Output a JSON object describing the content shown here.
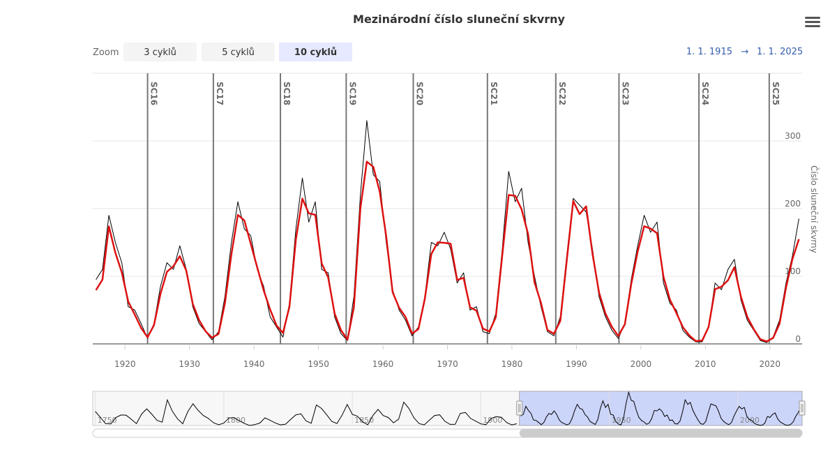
{
  "chart_data": {
    "type": "line",
    "title": "Mezinárodní číslo sluneční skvrny",
    "zoom_label": "Zoom",
    "zoom_buttons": [
      "3 cyklů",
      "5 cyklů",
      "10 cyklů"
    ],
    "zoom_selected": 2,
    "range_from": "1. 1. 1915",
    "range_arrow": "→",
    "range_to": "1. 1. 2025",
    "y_axis_label": "Číslo sluneční skvrny",
    "xlim": [
      1915,
      2025
    ],
    "xticks": [
      1920,
      1930,
      1940,
      1950,
      1960,
      1970,
      1980,
      1990,
      2000,
      2010,
      2020
    ],
    "ylim": [
      0,
      400
    ],
    "yticks": [
      0,
      100,
      200,
      300
    ],
    "grid": true,
    "x": [
      1915.5,
      1916.5,
      1917.5,
      1918.5,
      1919.5,
      1920.5,
      1921.5,
      1922.5,
      1923.5,
      1924.5,
      1925.5,
      1926.5,
      1927.5,
      1928.5,
      1929.5,
      1930.5,
      1931.5,
      1932.5,
      1933.5,
      1934.5,
      1935.5,
      1936.5,
      1937.5,
      1938.5,
      1939.5,
      1940.5,
      1941.5,
      1942.5,
      1943.5,
      1944.5,
      1945.5,
      1946.5,
      1947.5,
      1948.5,
      1949.5,
      1950.5,
      1951.5,
      1952.5,
      1953.5,
      1954.5,
      1955.5,
      1956.5,
      1957.5,
      1958.5,
      1959.5,
      1960.5,
      1961.5,
      1962.5,
      1963.5,
      1964.5,
      1965.5,
      1966.5,
      1967.5,
      1968.5,
      1969.5,
      1970.5,
      1971.5,
      1972.5,
      1973.5,
      1974.5,
      1975.5,
      1976.5,
      1977.5,
      1978.5,
      1979.5,
      1980.5,
      1981.5,
      1982.5,
      1983.5,
      1984.5,
      1985.5,
      1986.5,
      1987.5,
      1988.5,
      1989.5,
      1990.5,
      1991.5,
      1992.5,
      1993.5,
      1994.5,
      1995.5,
      1996.5,
      1997.5,
      1998.5,
      1999.5,
      2000.5,
      2001.5,
      2002.5,
      2003.5,
      2004.5,
      2005.5,
      2006.5,
      2007.5,
      2008.5,
      2009.5,
      2010.5,
      2011.5,
      2012.5,
      2013.5,
      2014.5,
      2015.5,
      2016.5,
      2017.5,
      2018.5,
      2019.5,
      2020.5,
      2021.5,
      2022.5,
      2023.5,
      2024.5
    ],
    "series": [
      {
        "color": "#000000",
        "width": 1,
        "values": [
          95,
          110,
          190,
          150,
          120,
          55,
          50,
          30,
          8,
          30,
          85,
          120,
          110,
          145,
          110,
          55,
          30,
          18,
          6,
          18,
          70,
          150,
          210,
          170,
          160,
          110,
          85,
          40,
          25,
          10,
          60,
          170,
          245,
          180,
          210,
          110,
          105,
          40,
          15,
          5,
          70,
          220,
          330,
          250,
          240,
          150,
          80,
          50,
          35,
          12,
          25,
          70,
          150,
          145,
          165,
          140,
          90,
          105,
          50,
          55,
          18,
          15,
          45,
          140,
          255,
          210,
          230,
          150,
          100,
          55,
          18,
          12,
          40,
          130,
          215,
          205,
          195,
          140,
          70,
          40,
          20,
          8,
          30,
          95,
          145,
          190,
          165,
          180,
          90,
          60,
          50,
          20,
          10,
          3,
          3,
          25,
          90,
          80,
          110,
          125,
          65,
          35,
          20,
          5,
          2,
          10,
          35,
          90,
          130,
          185
        ]
      },
      {
        "color": "#dd1111",
        "width": 2.5,
        "values": [
          79.5,
          95.0,
          173.6,
          134.6,
          105.7,
          62.7,
          43.5,
          23.7,
          9.7,
          27.9,
          74.0,
          106.5,
          114.7,
          129.7,
          108.2,
          59.4,
          35.1,
          18.6,
          9.2,
          14.6,
          60.2,
          132.8,
          190.6,
          182.6,
          148.0,
          113.0,
          79.2,
          50.8,
          27.1,
          16.1,
          55.3,
          154.3,
          214.7,
          193.0,
          190.7,
          118.9,
          98.3,
          45.0,
          20.1,
          6.6,
          54.2,
          200.7,
          269.3,
          261.7,
          225.1,
          159.0,
          76.4,
          53.4,
          39.9,
          15.0,
          22.0,
          66.8,
          132.9,
          150.0,
          149.4,
          148.0,
          94.4,
          97.6,
          54.1,
          49.2,
          22.5,
          18.4,
          39.3,
          131.0,
          220.1,
          218.9,
          198.9,
          162.4,
          91.0,
          60.5,
          20.6,
          14.8,
          33.9,
          123.0,
          211.1,
          191.8,
          203.3,
          133.0,
          76.1,
          44.9,
          25.1,
          11.6,
          28.9,
          88.3,
          136.3,
          173.9,
          170.4,
          163.6,
          99.3,
          65.3,
          45.8,
          24.7,
          12.6,
          4.2,
          4.8,
          24.9,
          80.8,
          84.5,
          94.0,
          113.3,
          69.8,
          39.8,
          21.7,
          7.0,
          3.6,
          8.8,
          29.6,
          83.2,
          125.5,
          154.7
        ]
      }
    ],
    "cycles": [
      {
        "label": "SC16",
        "x": 1923.5
      },
      {
        "label": "SC17",
        "x": 1933.7
      },
      {
        "label": "SC18",
        "x": 1944.1
      },
      {
        "label": "SC19",
        "x": 1954.3
      },
      {
        "label": "SC20",
        "x": 1964.7
      },
      {
        "label": "SC21",
        "x": 1976.2
      },
      {
        "label": "SC22",
        "x": 1986.8
      },
      {
        "label": "SC23",
        "x": 1996.6
      },
      {
        "label": "SC24",
        "x": 2009.0
      },
      {
        "label": "SC25",
        "x": 2019.9
      }
    ],
    "navigator": {
      "xlim": [
        1749,
        2025
      ],
      "ylim": [
        0,
        340
      ],
      "xticks": [
        1750,
        1800,
        1850,
        1900,
        1950,
        2000
      ],
      "selection": [
        1915,
        2025
      ],
      "x": [
        1750,
        1752,
        1754,
        1756,
        1758,
        1760,
        1762,
        1764,
        1766,
        1768,
        1770,
        1772,
        1774,
        1776,
        1778,
        1780,
        1782,
        1784,
        1786,
        1788,
        1790,
        1792,
        1794,
        1796,
        1798,
        1800,
        1802,
        1804,
        1806,
        1808,
        1810,
        1812,
        1814,
        1816,
        1818,
        1820,
        1822,
        1824,
        1826,
        1828,
        1830,
        1832,
        1834,
        1836,
        1838,
        1840,
        1842,
        1844,
        1846,
        1848,
        1850,
        1852,
        1854,
        1856,
        1858,
        1860,
        1862,
        1864,
        1866,
        1868,
        1870,
        1872,
        1874,
        1876,
        1878,
        1880,
        1882,
        1884,
        1886,
        1888,
        1890,
        1892,
        1894,
        1896,
        1898,
        1900,
        1902,
        1904,
        1906,
        1908,
        1910,
        1912,
        1914
      ],
      "values": [
        139,
        79,
        19,
        16,
        80,
        105,
        102,
        62,
        18,
        114,
        166,
        111,
        51,
        33,
        255,
        140,
        65,
        17,
        139,
        216,
        150,
        100,
        70,
        27,
        7,
        24,
        75,
        78,
        47,
        20,
        0,
        8,
        24,
        76,
        51,
        26,
        6,
        13,
        60,
        106,
        116,
        45,
        22,
        204,
        170,
        107,
        40,
        20,
        102,
        209,
        110,
        92,
        35,
        7,
        99,
        160,
        99,
        79,
        27,
        62,
        232,
        170,
        75,
        19,
        6,
        54,
        100,
        106,
        42,
        11,
        12,
        120,
        130,
        70,
        44,
        16,
        8,
        71,
        89,
        82,
        30,
        6,
        17
      ]
    }
  }
}
